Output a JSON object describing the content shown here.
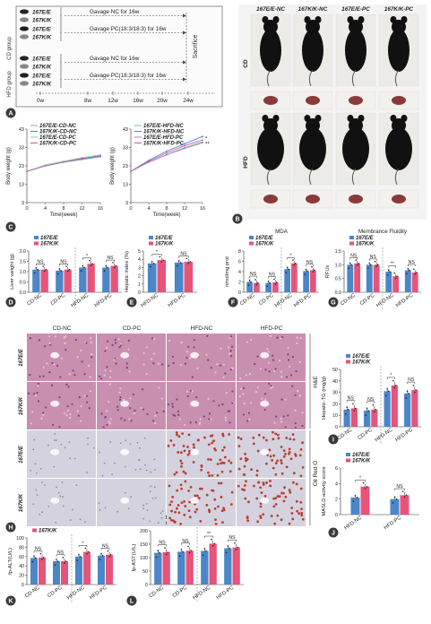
{
  "colors": {
    "ee": "#4a86c8",
    "kk": "#e8537a",
    "panel_bg": "#f7f7f7",
    "mouse": "#111111",
    "liver": "#8a3a38",
    "he_bg": "#c98fae",
    "oro_bg": "#d5d2df",
    "oro_dot": "#b8402e",
    "line_nc": "#7fbf7f",
    "line_pc": "#c55fb3",
    "line_hfd_nc": "#6a9fd8",
    "line_hfd_pc": "#b07ccc"
  },
  "panel_letters": [
    "A",
    "B",
    "C",
    "D",
    "E",
    "F",
    "G",
    "H",
    "I",
    "J",
    "K",
    "L"
  ],
  "panelA": {
    "cd_group": "CD group",
    "hfd_group": "HFD group",
    "rows": [
      {
        "label": "167E/E",
        "arrow": "Gavage NC for 16w"
      },
      {
        "label": "167K/K",
        "arrow": ""
      },
      {
        "label": "167E/E",
        "arrow": "Gavage PC(18:3/18:3) for 16w"
      },
      {
        "label": "167K/K",
        "arrow": ""
      },
      {
        "label": "167E/E",
        "arrow": "Gavage NC for 16w"
      },
      {
        "label": "167K/K",
        "arrow": ""
      },
      {
        "label": "167E/E",
        "arrow": "Gavage PC(18:3/18:3) for 16w"
      },
      {
        "label": "167K/K",
        "arrow": ""
      }
    ],
    "sacrifice": "Sacrifice",
    "timeline": [
      "0w",
      "8w",
      "12w",
      "16w",
      "20w",
      "24w"
    ]
  },
  "panelB": {
    "headers": [
      "167E/E-NC",
      "167K/K-NC",
      "167E/E-PC",
      "167K/K-PC"
    ],
    "row_labels": [
      "CD",
      "HFD"
    ]
  },
  "panelC": {
    "chart_data": [
      {
        "type": "line",
        "ylabel": "Body weight (g)",
        "xlabel": "Time(week)",
        "x": [
          0,
          4,
          8,
          12,
          16
        ],
        "xticks": [
          "0",
          "4",
          "8",
          "12",
          "16"
        ],
        "yticks": [
          "3",
          "13",
          "23",
          "33",
          "43"
        ],
        "ylim": [
          3,
          43
        ],
        "series": [
          {
            "name": "167E/E-CD-NC",
            "values": [
              20,
              23,
              25.5,
              27,
              28.5
            ]
          },
          {
            "name": "167K/K-CD-NC",
            "values": [
              20,
              23,
              25,
              26.5,
              28
            ]
          },
          {
            "name": "167E/E-CD-PC",
            "values": [
              20,
              23.5,
              25.5,
              27.5,
              29
            ]
          },
          {
            "name": "167K/K-CD-PC",
            "values": [
              20,
              23,
              25,
              27,
              28.5
            ]
          }
        ]
      },
      {
        "type": "line",
        "ylabel": "Body weight (g)",
        "xlabel": "Time(week)",
        "x": [
          0,
          4,
          8,
          12,
          16
        ],
        "xticks": [
          "0",
          "4",
          "8",
          "12",
          "16"
        ],
        "yticks": [
          "3",
          "13",
          "23",
          "33",
          "43"
        ],
        "ylim": [
          3,
          43
        ],
        "series": [
          {
            "name": "167E/E-HFD-NC",
            "values": [
              20,
              25,
              29,
              33,
              36
            ]
          },
          {
            "name": "167K/K-HFD-NC",
            "values": [
              20,
              26,
              31,
              35,
              39
            ]
          },
          {
            "name": "167E/E-HFD-PC",
            "values": [
              20,
              25,
              29,
              32.5,
              35.5
            ]
          },
          {
            "name": "167K/K-HFD-PC",
            "values": [
              20,
              25.5,
              30,
              34,
              37
            ]
          }
        ],
        "annotations": [
          "*",
          "**"
        ]
      }
    ]
  },
  "bar_panels": [
    {
      "id": "D",
      "title": "",
      "ylabel": "Liver weight (g)",
      "yticks": [
        "0.0",
        "0.5",
        "1.0",
        "1.5",
        "2.0"
      ],
      "ylim": [
        0,
        2.0
      ],
      "categories": [
        "CD-NC",
        "CD-PC",
        "HFD-NC",
        "HFD-PC"
      ],
      "ee": [
        1.1,
        1.05,
        1.2,
        1.2
      ],
      "kk": [
        1.1,
        1.1,
        1.38,
        1.28
      ],
      "sig": [
        "NS",
        "NS",
        "*",
        "NS"
      ],
      "split": true
    },
    {
      "id": "E",
      "title": "",
      "ylabel": "Hepatic index (%)",
      "yticks": [
        "0",
        "1",
        "2",
        "3",
        "4",
        "5"
      ],
      "ylim": [
        0,
        5
      ],
      "categories": [
        "HFD-NC",
        "HFD-PC"
      ],
      "ee": [
        3.5,
        3.6
      ],
      "kk": [
        3.9,
        3.7
      ],
      "sig": [
        "*",
        "NS"
      ],
      "split": false
    },
    {
      "id": "F",
      "title": "MDA",
      "ylabel": "nmol/mg prot",
      "yticks": [
        "0",
        "2",
        "4",
        "6",
        "8"
      ],
      "ylim": [
        0,
        8
      ],
      "categories": [
        "CD-NC",
        "CD-PC",
        "HFD-NC",
        "HFD-PC"
      ],
      "ee": [
        2.0,
        1.8,
        4.5,
        4.1
      ],
      "kk": [
        1.8,
        1.9,
        5.6,
        4.3
      ],
      "sig": [
        "NS",
        "NS",
        "*",
        "NS"
      ],
      "split": true
    },
    {
      "id": "G",
      "title": "Membrance Fluidity",
      "ylabel": "RFUs",
      "yticks": [
        "0.0",
        "0.5",
        "1.0",
        "1.5"
      ],
      "ylim": [
        0,
        1.5
      ],
      "categories": [
        "CD-NC",
        "CD-PC",
        "HFD-NC",
        "HFD-PC"
      ],
      "ee": [
        1.0,
        1.0,
        0.75,
        0.8
      ],
      "kk": [
        1.05,
        1.0,
        0.58,
        0.72
      ],
      "sig": [
        "NS",
        "NS",
        "**",
        "NS"
      ],
      "split": true
    },
    {
      "id": "I",
      "title": "",
      "ylabel": "Hepatic-TG (mg/g)",
      "yticks": [
        "0",
        "10",
        "20",
        "30",
        "40",
        "50"
      ],
      "ylim": [
        0,
        50
      ],
      "categories": [
        "CD-NC",
        "CD-PC",
        "HFD-NC",
        "HFD-PC"
      ],
      "ee": [
        15,
        14,
        31,
        29
      ],
      "kk": [
        16,
        15,
        36,
        32
      ],
      "sig": [
        "NS",
        "NS",
        "*",
        "NS"
      ],
      "split": true
    },
    {
      "id": "J",
      "title": "",
      "ylabel": "MASLD activity score",
      "yticks": [
        "0",
        "2",
        "4",
        "6"
      ],
      "ylim": [
        0,
        6
      ],
      "categories": [
        "HFD-NC",
        "HFD-PC"
      ],
      "ee": [
        2.2,
        2.0
      ],
      "kk": [
        3.6,
        2.5
      ],
      "sig": [
        "*",
        "NS"
      ],
      "split": false
    },
    {
      "id": "K",
      "title": "",
      "ylabel": "fp-ALT(U/L)",
      "yticks": [
        "0",
        "20",
        "40",
        "60",
        "80",
        "100"
      ],
      "ylim": [
        0,
        100
      ],
      "categories": [
        "CD-NC",
        "CD-PC",
        "HFD-NC",
        "HFD-PC"
      ],
      "ee": [
        57,
        50,
        60,
        62
      ],
      "kk": [
        58,
        50,
        70,
        64
      ],
      "sig": [
        "NS",
        "NS",
        "*",
        "NS"
      ],
      "split": true
    },
    {
      "id": "L",
      "title": "",
      "ylabel": "fp-AST(U/L)",
      "yticks": [
        "0",
        "50",
        "100",
        "150",
        "200"
      ],
      "ylim": [
        0,
        200
      ],
      "categories": [
        "CD-NC",
        "CD-PC",
        "HFD-NC",
        "HFD-PC"
      ],
      "ee": [
        118,
        122,
        125,
        135
      ],
      "kk": [
        120,
        126,
        152,
        138
      ],
      "sig": [
        "NS",
        "NS",
        "**",
        "NS"
      ],
      "split": true
    }
  ],
  "legend": {
    "ee": "167E/E",
    "kk": "167K/K"
  },
  "panelH": {
    "col_headers": [
      "CD-NC",
      "CD-PC",
      "HFD-NC",
      "HFD-PC"
    ],
    "row_labels": [
      "167E/E",
      "167K/K",
      "167E/E",
      "167K/K"
    ],
    "stain_labels": [
      "H&E",
      "Oil Red O"
    ]
  }
}
